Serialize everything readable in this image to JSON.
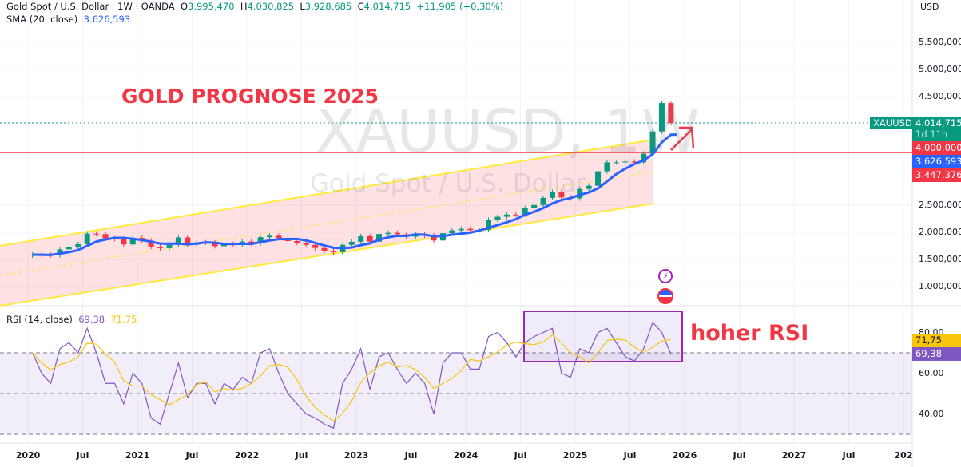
{
  "header": {
    "symbol_line": "Gold Spot / U.S. Dollar · 1W · OANDA",
    "o_label": "O",
    "o": "3.995,470",
    "h_label": "H",
    "h": "4.030,825",
    "l_label": "L",
    "l": "3.928,685",
    "c_label": "C",
    "c": "4.014,715",
    "change": "+11,905 (+0,30%)",
    "sma_label": "SMA (20, close)",
    "sma_value": "3.626,593",
    "currency": "USD"
  },
  "watermark": {
    "symbol": "XAUUSD, 1W",
    "name": "Gold Spot / U.S. Dollar"
  },
  "annotations": {
    "title": "GOLD PROGNOSE 2025",
    "rsi_note": "hoher RSI"
  },
  "price_tags": {
    "symbol": "XAUUSD",
    "price": "4.014,715",
    "countdown": "1d 11h",
    "line": "4.000,000",
    "sma": "3.626,593",
    "other": "3.447,376"
  },
  "rsi": {
    "label": "RSI (14, close)",
    "value": "69,38",
    "signal": "71,75"
  },
  "colors": {
    "up": "#089981",
    "down": "#f23645",
    "sma": "#2962ff",
    "rsi": "#7e57c2",
    "rsi_signal": "#f9c40c",
    "channel": "#ffeb3b",
    "channel_fill": "#f23645"
  },
  "chart_data": [
    {
      "type": "candlestick",
      "title": "Gold Spot / U.S. Dollar · 1W · OANDA",
      "x_start": "2020-01",
      "x_step": "month",
      "close": [
        1589,
        1585,
        1577,
        1686,
        1730,
        1781,
        1975,
        1967,
        1886,
        1879,
        1776,
        1895,
        1848,
        1734,
        1707,
        1769,
        1905,
        1770,
        1814,
        1813,
        1743,
        1783,
        1774,
        1829,
        1797,
        1909,
        1937,
        1897,
        1838,
        1807,
        1766,
        1711,
        1660,
        1633,
        1768,
        1824,
        1928,
        1827,
        1969,
        1990,
        1963,
        1919,
        1965,
        1940,
        1849,
        1983,
        2036,
        2063,
        2039,
        2044,
        2230,
        2286,
        2327,
        2326,
        2447,
        2503,
        2634,
        2744,
        2643,
        2625,
        2798,
        2858,
        3124,
        3288,
        3289,
        3303,
        3290,
        3448,
        3858,
        4381,
        4014.715
      ],
      "horizontal_line": 4000,
      "y_ticks": [
        "5.500,000",
        "5.000,000",
        "4.500,000",
        "2.500,000",
        "2.000,000",
        "1.500,000",
        "1.000,000"
      ],
      "y_tick_values": [
        5500,
        5000,
        4500,
        2500,
        2000,
        1500,
        1000
      ],
      "x_ticks": [
        "2020",
        "Jul",
        "2021",
        "Jul",
        "2022",
        "Jul",
        "2023",
        "Jul",
        "2024",
        "Jul",
        "2025",
        "Jul",
        "2026",
        "Jul",
        "2027",
        "Jul",
        "202"
      ],
      "sma": {
        "name": "SMA (20, close)",
        "last": 3626.593
      }
    },
    {
      "type": "line",
      "title": "RSI (14, close)",
      "ylim": [
        25,
        95
      ],
      "overbought": 70,
      "mid": 50,
      "oversold": 30,
      "y_ticks": [
        "80,00",
        "60,00",
        "40,00"
      ],
      "y_tick_values": [
        80,
        60,
        40
      ],
      "values": [
        70,
        60,
        55,
        72,
        75,
        70,
        82,
        70,
        55,
        55,
        45,
        60,
        55,
        38,
        35,
        50,
        65,
        48,
        55,
        55,
        45,
        55,
        52,
        58,
        55,
        70,
        72,
        60,
        50,
        45,
        40,
        38,
        35,
        33,
        55,
        62,
        72,
        52,
        68,
        70,
        62,
        55,
        60,
        55,
        40,
        65,
        70,
        70,
        62,
        62,
        78,
        80,
        75,
        68,
        75,
        78,
        80,
        82,
        60,
        58,
        72,
        70,
        80,
        82,
        75,
        68,
        66,
        72,
        85,
        80,
        69.38
      ]
    }
  ]
}
